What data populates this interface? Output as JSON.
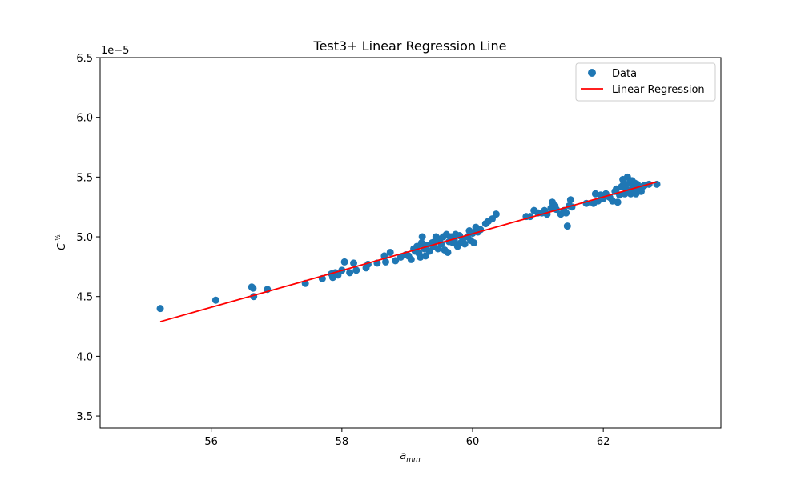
{
  "chart_data": {
    "type": "scatter",
    "title": "Test3+ Linear Regression Line",
    "xlabel_base": "a",
    "xlabel_sub": "mm",
    "ylabel_base": "C",
    "ylabel_sup": "-½",
    "offset_text": "1e−5",
    "xlim": [
      54.3,
      63.8
    ],
    "ylim": [
      3.4,
      6.5
    ],
    "xticks": [
      56,
      58,
      60,
      62
    ],
    "xtick_labels": [
      "56",
      "58",
      "60",
      "62"
    ],
    "yticks": [
      3.5,
      4.0,
      4.5,
      5.0,
      5.5,
      6.0,
      6.5
    ],
    "ytick_labels": [
      "3.5",
      "4.0",
      "4.5",
      "5.0",
      "5.5",
      "6.0",
      "6.5"
    ],
    "grid": false,
    "legend_position": "upper-right",
    "colors": {
      "points": "#1f77b4",
      "line": "#ff0000",
      "axes": "#000000"
    },
    "series": [
      {
        "name": "Data",
        "kind": "scatter",
        "points": [
          [
            55.22,
            4.4
          ],
          [
            56.07,
            4.47
          ],
          [
            56.62,
            4.58
          ],
          [
            56.64,
            4.57
          ],
          [
            56.65,
            4.5
          ],
          [
            56.86,
            4.56
          ],
          [
            57.44,
            4.61
          ],
          [
            57.7,
            4.65
          ],
          [
            57.84,
            4.69
          ],
          [
            57.86,
            4.66
          ],
          [
            57.9,
            4.7
          ],
          [
            57.94,
            4.68
          ],
          [
            58.0,
            4.72
          ],
          [
            58.04,
            4.79
          ],
          [
            58.12,
            4.7
          ],
          [
            58.18,
            4.78
          ],
          [
            58.22,
            4.72
          ],
          [
            58.37,
            4.74
          ],
          [
            58.4,
            4.77
          ],
          [
            58.54,
            4.78
          ],
          [
            58.65,
            4.84
          ],
          [
            58.67,
            4.79
          ],
          [
            58.74,
            4.87
          ],
          [
            58.82,
            4.8
          ],
          [
            58.9,
            4.83
          ],
          [
            58.98,
            4.85
          ],
          [
            59.02,
            4.84
          ],
          [
            59.06,
            4.81
          ],
          [
            59.1,
            4.9
          ],
          [
            59.12,
            4.88
          ],
          [
            59.15,
            4.92
          ],
          [
            59.18,
            4.86
          ],
          [
            59.2,
            4.83
          ],
          [
            59.22,
            4.95
          ],
          [
            59.23,
            5.0
          ],
          [
            59.26,
            4.9
          ],
          [
            59.28,
            4.84
          ],
          [
            59.3,
            4.93
          ],
          [
            59.34,
            4.88
          ],
          [
            59.38,
            4.95
          ],
          [
            59.4,
            4.92
          ],
          [
            59.42,
            4.96
          ],
          [
            59.44,
            5.0
          ],
          [
            59.47,
            4.9
          ],
          [
            59.5,
            4.98
          ],
          [
            59.52,
            4.94
          ],
          [
            59.55,
            5.0
          ],
          [
            59.57,
            4.89
          ],
          [
            59.6,
            5.02
          ],
          [
            59.62,
            4.87
          ],
          [
            59.64,
            4.96
          ],
          [
            59.67,
            5.0
          ],
          [
            59.7,
            4.95
          ],
          [
            59.72,
            4.97
          ],
          [
            59.74,
            5.02
          ],
          [
            59.77,
            4.92
          ],
          [
            59.8,
            5.01
          ],
          [
            59.82,
            4.95
          ],
          [
            59.85,
            4.98
          ],
          [
            59.88,
            4.94
          ],
          [
            59.92,
            5.0
          ],
          [
            59.95,
            5.05
          ],
          [
            59.97,
            4.97
          ],
          [
            60.0,
            5.03
          ],
          [
            60.02,
            4.95
          ],
          [
            60.05,
            5.08
          ],
          [
            60.08,
            5.04
          ],
          [
            60.12,
            5.06
          ],
          [
            60.2,
            5.11
          ],
          [
            60.24,
            5.13
          ],
          [
            60.3,
            5.15
          ],
          [
            60.36,
            5.19
          ],
          [
            60.82,
            5.17
          ],
          [
            60.88,
            5.17
          ],
          [
            60.94,
            5.22
          ],
          [
            61.0,
            5.2
          ],
          [
            61.06,
            5.2
          ],
          [
            61.1,
            5.22
          ],
          [
            61.14,
            5.19
          ],
          [
            61.2,
            5.24
          ],
          [
            61.22,
            5.29
          ],
          [
            61.26,
            5.26
          ],
          [
            61.28,
            5.23
          ],
          [
            61.35,
            5.19
          ],
          [
            61.4,
            5.22
          ],
          [
            61.43,
            5.2
          ],
          [
            61.45,
            5.09
          ],
          [
            61.48,
            5.26
          ],
          [
            61.5,
            5.31
          ],
          [
            61.52,
            5.25
          ],
          [
            61.74,
            5.28
          ],
          [
            61.85,
            5.28
          ],
          [
            61.88,
            5.36
          ],
          [
            61.92,
            5.3
          ],
          [
            61.96,
            5.35
          ],
          [
            62.0,
            5.32
          ],
          [
            62.04,
            5.36
          ],
          [
            62.1,
            5.33
          ],
          [
            62.14,
            5.3
          ],
          [
            62.18,
            5.38
          ],
          [
            62.2,
            5.4
          ],
          [
            62.22,
            5.29
          ],
          [
            62.25,
            5.35
          ],
          [
            62.28,
            5.42
          ],
          [
            62.3,
            5.48
          ],
          [
            62.31,
            5.44
          ],
          [
            62.33,
            5.36
          ],
          [
            62.35,
            5.4
          ],
          [
            62.37,
            5.5
          ],
          [
            62.38,
            5.38
          ],
          [
            62.4,
            5.45
          ],
          [
            62.42,
            5.36
          ],
          [
            62.44,
            5.47
          ],
          [
            62.45,
            5.42
          ],
          [
            62.47,
            5.4
          ],
          [
            62.48,
            5.45
          ],
          [
            62.5,
            5.36
          ],
          [
            62.52,
            5.44
          ],
          [
            62.55,
            5.4
          ],
          [
            62.58,
            5.38
          ],
          [
            62.6,
            5.42
          ],
          [
            62.63,
            5.43
          ],
          [
            62.7,
            5.44
          ],
          [
            62.82,
            5.44
          ]
        ]
      },
      {
        "name": "Linear Regression",
        "kind": "line",
        "points": [
          [
            55.22,
            4.29
          ],
          [
            62.82,
            5.46
          ]
        ]
      }
    ]
  }
}
